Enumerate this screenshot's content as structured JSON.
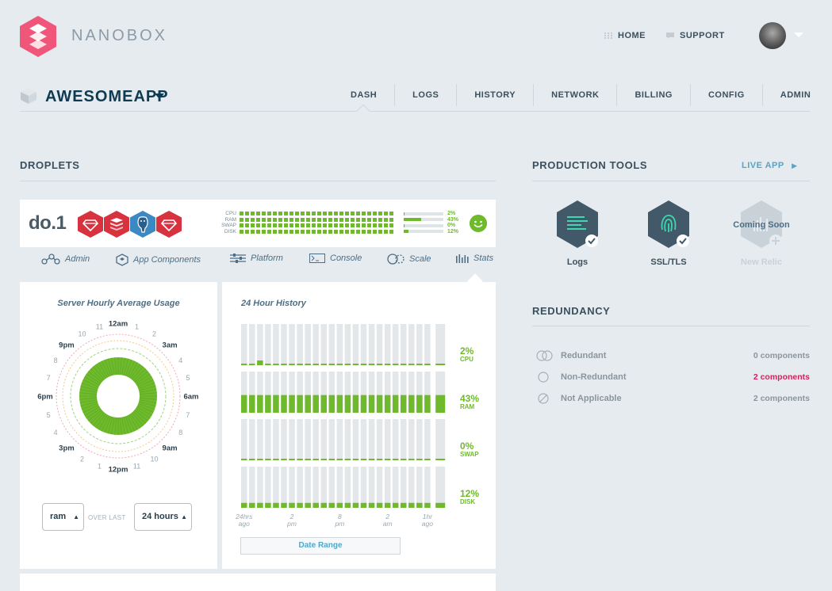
{
  "header": {
    "brand": "NANOBOX",
    "nav": [
      {
        "label": "HOME",
        "icon": "grid-icon"
      },
      {
        "label": "SUPPORT",
        "icon": "chat-icon"
      }
    ]
  },
  "app": {
    "name": "AWESOMEAPP",
    "tabs": [
      "DASH",
      "LOGS",
      "HISTORY",
      "NETWORK",
      "BILLING",
      "CONFIG",
      "ADMIN"
    ],
    "active_tab": "DASH"
  },
  "droplets": {
    "title": "DROPLETS",
    "name": "do.1",
    "components": [
      "ruby-icon",
      "redis-icon",
      "postgres-icon",
      "ruby-icon"
    ],
    "meters": [
      {
        "label": "CPU",
        "pct": "2%",
        "value": 0.02
      },
      {
        "label": "RAM",
        "pct": "43%",
        "value": 0.43
      },
      {
        "label": "SWAP",
        "pct": "0%",
        "value": 0.0
      },
      {
        "label": "DISK",
        "pct": "12%",
        "value": 0.12
      }
    ],
    "status": "healthy",
    "subnav": [
      {
        "label": "Admin",
        "icon": "nodes-icon"
      },
      {
        "label": "App Components",
        "icon": "hexagon-icon"
      },
      {
        "label": "Platform",
        "icon": "sliders-icon"
      },
      {
        "label": "Console",
        "icon": "terminal-icon"
      },
      {
        "label": "Scale",
        "icon": "scale-icon"
      },
      {
        "label": "Stats",
        "icon": "bars-icon"
      }
    ]
  },
  "usage": {
    "title": "Server Hourly Average Usage",
    "clock_labels": [
      "12am",
      "1",
      "2",
      "3am",
      "4",
      "5",
      "6am",
      "7",
      "8",
      "9am",
      "10",
      "11",
      "12pm",
      "1",
      "2",
      "3pm",
      "4",
      "5",
      "6pm",
      "7",
      "8",
      "9pm",
      "10",
      "11"
    ],
    "metric": "ram",
    "over_last": "OVER LAST",
    "range": "24 hours"
  },
  "history": {
    "title": "24 Hour History",
    "rows": [
      {
        "pct": "2%",
        "label": "CPU",
        "value": 0.02
      },
      {
        "pct": "43%",
        "label": "RAM",
        "value": 0.43
      },
      {
        "pct": "0%",
        "label": "SWAP",
        "value": 0.0
      },
      {
        "pct": "12%",
        "label": "DISK",
        "value": 0.12
      }
    ],
    "ticks": [
      {
        "a": "24hrs",
        "b": "ago"
      },
      {
        "a": "2",
        "b": "pm"
      },
      {
        "a": "8",
        "b": "pm"
      },
      {
        "a": "2",
        "b": "am"
      },
      {
        "a": "1hr",
        "b": "ago"
      }
    ],
    "date_range": "Date Range"
  },
  "production_tools": {
    "title": "PRODUCTION TOOLS",
    "live_app": "LIVE APP",
    "tools": [
      {
        "label": "Logs",
        "color": "#42596a"
      },
      {
        "label": "SSL/TLS",
        "color": "#42596a"
      },
      {
        "label": "New Relic",
        "overlay": "Coming Soon",
        "color": "#c8d2d8"
      }
    ]
  },
  "redundancy": {
    "title": "REDUNDANCY",
    "rows": [
      {
        "label": "Redundant",
        "count": "0 components"
      },
      {
        "label": "Non-Redundant",
        "count": "2 components",
        "highlight": "#d0245c"
      },
      {
        "label": "Not Applicable",
        "count": "2 components"
      }
    ]
  }
}
